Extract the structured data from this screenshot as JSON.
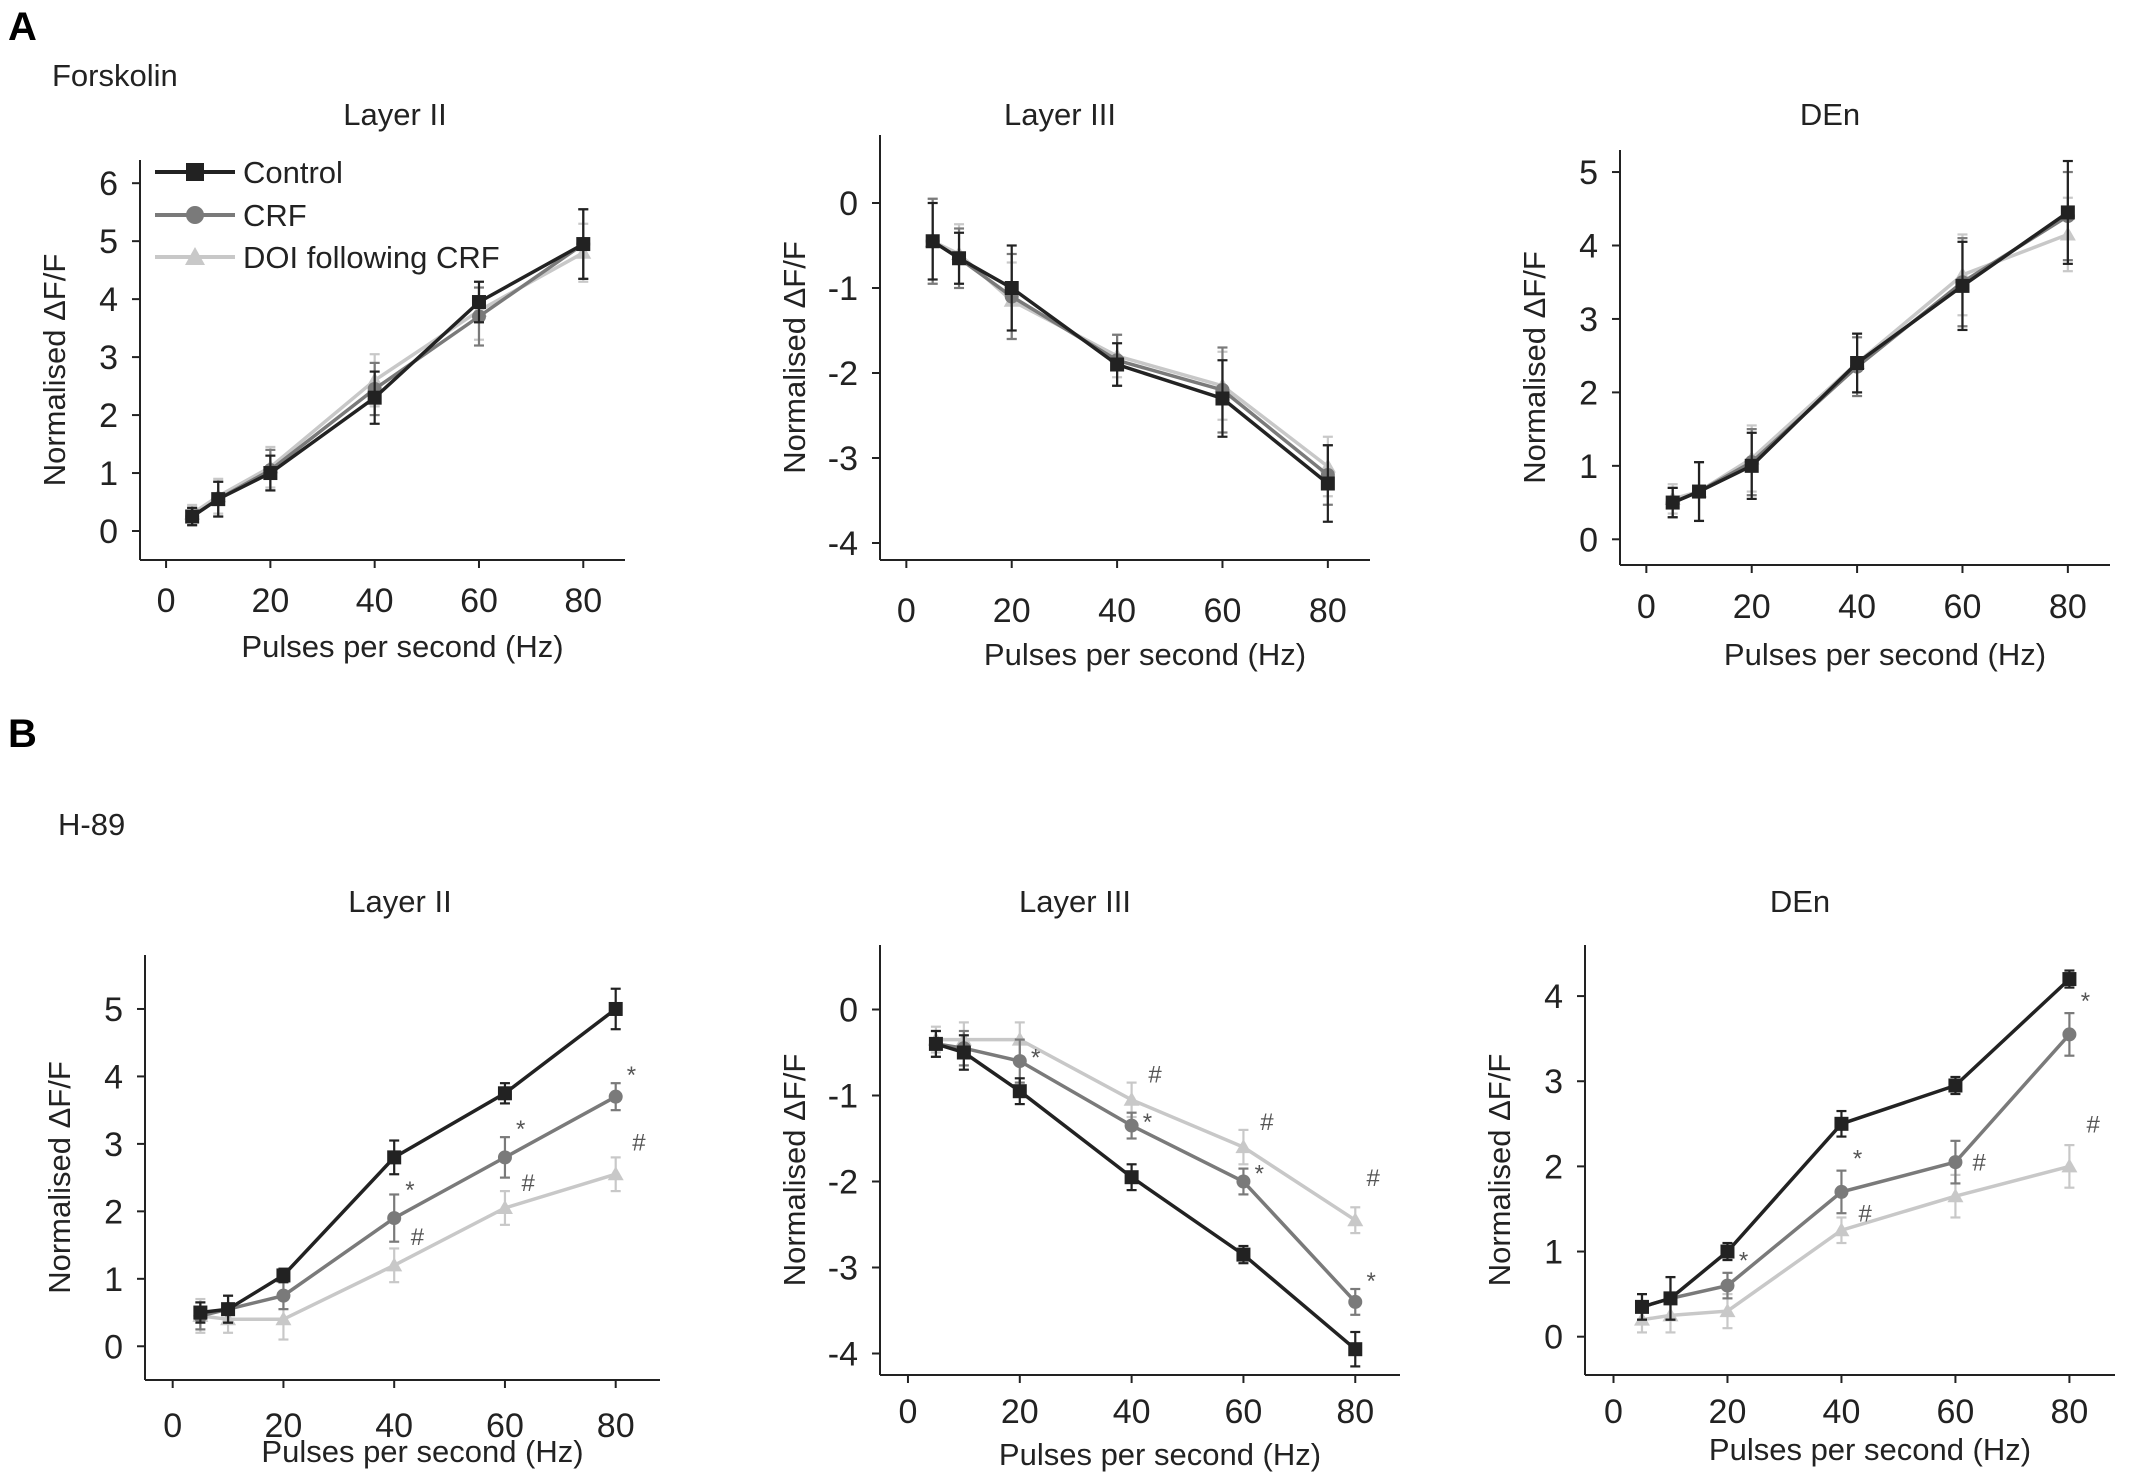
{
  "panels": [
    {
      "letter": "A",
      "condition": "Forskolin"
    },
    {
      "letter": "B",
      "condition": "H-89"
    }
  ],
  "legend": [
    {
      "name": "Control",
      "color": "#222222",
      "marker": "square"
    },
    {
      "name": "CRF",
      "color": "#7a7a7a",
      "marker": "circle"
    },
    {
      "name": "DOI following CRF",
      "color": "#c8c8c8",
      "marker": "triangle"
    }
  ],
  "chart_data": [
    {
      "type": "line",
      "panel": "A",
      "condition": "Forskolin",
      "title": "Layer II",
      "xlabel": "Pulses per second (Hz)",
      "ylabel": "Normalised ΔF/F",
      "xlim": [
        -5,
        88
      ],
      "ylim": [
        -0.5,
        6.4
      ],
      "xticks": [
        0,
        20,
        40,
        60,
        80
      ],
      "yticks": [
        0,
        1,
        2,
        3,
        4,
        5,
        6
      ],
      "x": [
        5,
        10,
        20,
        40,
        60,
        80
      ],
      "series": [
        {
          "name": "Control",
          "values": [
            0.25,
            0.55,
            1.0,
            2.3,
            3.95,
            4.95
          ],
          "errors": [
            0.15,
            0.3,
            0.3,
            0.45,
            0.35,
            0.6
          ]
        },
        {
          "name": "CRF",
          "values": [
            0.25,
            0.55,
            1.05,
            2.45,
            3.7,
            4.95
          ],
          "errors": [
            0.15,
            0.3,
            0.35,
            0.45,
            0.5,
            0.6
          ]
        },
        {
          "name": "DOI following CRF",
          "values": [
            0.3,
            0.6,
            1.1,
            2.6,
            3.8,
            4.8
          ],
          "errors": [
            0.15,
            0.3,
            0.35,
            0.45,
            0.5,
            0.5
          ]
        }
      ],
      "annotations": []
    },
    {
      "type": "line",
      "panel": "A",
      "condition": "Forskolin",
      "title": "Layer III",
      "xlabel": "Pulses per second (Hz)",
      "ylabel": "Normalised ΔF/F",
      "xlim": [
        -5,
        88
      ],
      "ylim": [
        -4.2,
        0.8
      ],
      "xticks": [
        0,
        20,
        40,
        60,
        80
      ],
      "yticks": [
        0,
        -1,
        -2,
        -3,
        -4
      ],
      "x": [
        5,
        10,
        20,
        40,
        60,
        80
      ],
      "series": [
        {
          "name": "Control",
          "values": [
            -0.45,
            -0.65,
            -1.0,
            -1.9,
            -2.3,
            -3.3
          ],
          "errors": [
            0.45,
            0.3,
            0.5,
            0.25,
            0.45,
            0.45
          ]
        },
        {
          "name": "CRF",
          "values": [
            -0.45,
            -0.65,
            -1.1,
            -1.85,
            -2.2,
            -3.2
          ],
          "errors": [
            0.5,
            0.35,
            0.5,
            0.3,
            0.5,
            0.35
          ]
        },
        {
          "name": "DOI following CRF",
          "values": [
            -0.45,
            -0.6,
            -1.15,
            -1.8,
            -2.15,
            -3.1
          ],
          "errors": [
            0.5,
            0.35,
            0.45,
            0.25,
            0.4,
            0.35
          ]
        }
      ],
      "annotations": []
    },
    {
      "type": "line",
      "panel": "A",
      "condition": "Forskolin",
      "title": "DEn",
      "xlabel": "Pulses per second (Hz)",
      "ylabel": "Normalised ΔF/F",
      "xlim": [
        -5,
        88
      ],
      "ylim": [
        -0.35,
        5.3
      ],
      "xticks": [
        0,
        20,
        40,
        60,
        80
      ],
      "yticks": [
        0,
        1,
        2,
        3,
        4,
        5
      ],
      "x": [
        5,
        10,
        20,
        40,
        60,
        80
      ],
      "series": [
        {
          "name": "Control",
          "values": [
            0.5,
            0.65,
            1.0,
            2.4,
            3.45,
            4.45
          ],
          "errors": [
            0.2,
            0.4,
            0.45,
            0.4,
            0.6,
            0.7
          ]
        },
        {
          "name": "CRF",
          "values": [
            0.5,
            0.65,
            1.05,
            2.35,
            3.5,
            4.4
          ],
          "errors": [
            0.2,
            0.4,
            0.45,
            0.4,
            0.6,
            0.6
          ]
        },
        {
          "name": "DOI following CRF",
          "values": [
            0.55,
            0.65,
            1.1,
            2.4,
            3.6,
            4.15
          ],
          "errors": [
            0.2,
            0.4,
            0.45,
            0.4,
            0.55,
            0.5
          ]
        }
      ],
      "annotations": []
    },
    {
      "type": "line",
      "panel": "B",
      "condition": "H-89",
      "title": "Layer II",
      "xlabel": "Pulses per second (Hz)",
      "ylabel": "Normalised ΔF/F",
      "xlim": [
        -5,
        88
      ],
      "ylim": [
        -0.5,
        5.8
      ],
      "xticks": [
        0,
        20,
        40,
        60,
        80
      ],
      "yticks": [
        0,
        1,
        2,
        3,
        4,
        5
      ],
      "x": [
        5,
        10,
        20,
        40,
        60,
        80
      ],
      "series": [
        {
          "name": "Control",
          "values": [
            0.5,
            0.55,
            1.05,
            2.8,
            3.75,
            5.0
          ],
          "errors": [
            0.15,
            0.2,
            0.1,
            0.25,
            0.15,
            0.3
          ]
        },
        {
          "name": "CRF",
          "values": [
            0.45,
            0.55,
            0.75,
            1.9,
            2.8,
            3.7
          ],
          "errors": [
            0.2,
            0.2,
            0.2,
            0.35,
            0.3,
            0.2
          ]
        },
        {
          "name": "DOI following CRF",
          "values": [
            0.45,
            0.4,
            0.4,
            1.2,
            2.05,
            2.55
          ],
          "errors": [
            0.25,
            0.2,
            0.3,
            0.25,
            0.25,
            0.25
          ]
        }
      ],
      "annotations": [
        {
          "text": "*",
          "x": 42,
          "y": 2.2
        },
        {
          "text": "#",
          "x": 43,
          "y": 1.5
        },
        {
          "text": "*",
          "x": 62,
          "y": 3.1
        },
        {
          "text": "#",
          "x": 63,
          "y": 2.3
        },
        {
          "text": "*",
          "x": 82,
          "y": 3.9
        },
        {
          "text": "#",
          "x": 83,
          "y": 2.9
        }
      ]
    },
    {
      "type": "line",
      "panel": "B",
      "condition": "H-89",
      "title": "Layer III",
      "xlabel": "Pulses per second (Hz)",
      "ylabel": "Normalised ΔF/F",
      "xlim": [
        -5,
        88
      ],
      "ylim": [
        -4.25,
        0.75
      ],
      "xticks": [
        0,
        20,
        40,
        60,
        80
      ],
      "yticks": [
        0,
        -1,
        -2,
        -3,
        -4
      ],
      "x": [
        5,
        10,
        20,
        40,
        60,
        80
      ],
      "series": [
        {
          "name": "Control",
          "values": [
            -0.4,
            -0.5,
            -0.95,
            -1.95,
            -2.85,
            -3.95
          ],
          "errors": [
            0.15,
            0.2,
            0.15,
            0.15,
            0.1,
            0.2
          ]
        },
        {
          "name": "CRF",
          "values": [
            -0.4,
            -0.45,
            -0.6,
            -1.35,
            -2.0,
            -3.4
          ],
          "errors": [
            0.15,
            0.2,
            0.25,
            0.15,
            0.15,
            0.15
          ]
        },
        {
          "name": "DOI following CRF",
          "values": [
            -0.35,
            -0.35,
            -0.35,
            -1.05,
            -1.6,
            -2.45
          ],
          "errors": [
            0.15,
            0.2,
            0.2,
            0.2,
            0.2,
            0.15
          ]
        }
      ],
      "annotations": [
        {
          "text": "*",
          "x": 22,
          "y": -0.65
        },
        {
          "text": "#",
          "x": 43,
          "y": -0.85
        },
        {
          "text": "*",
          "x": 42,
          "y": -1.4
        },
        {
          "text": "#",
          "x": 63,
          "y": -1.4
        },
        {
          "text": "*",
          "x": 62,
          "y": -2.0
        },
        {
          "text": "#",
          "x": 82,
          "y": -2.05
        },
        {
          "text": "*",
          "x": 82,
          "y": -3.25
        }
      ]
    },
    {
      "type": "line",
      "panel": "B",
      "condition": "H-89",
      "title": "DEn",
      "xlabel": "Pulses per second (Hz)",
      "ylabel": "Normalised ΔF/F",
      "xlim": [
        -5,
        88
      ],
      "ylim": [
        -0.45,
        4.6
      ],
      "xticks": [
        0,
        20,
        40,
        60,
        80
      ],
      "yticks": [
        0,
        1,
        2,
        3,
        4
      ],
      "x": [
        5,
        10,
        20,
        40,
        60,
        80
      ],
      "series": [
        {
          "name": "Control",
          "values": [
            0.35,
            0.45,
            1.0,
            2.5,
            2.95,
            4.2
          ],
          "errors": [
            0.15,
            0.25,
            0.1,
            0.15,
            0.1,
            0.1
          ]
        },
        {
          "name": "CRF",
          "values": [
            0.35,
            0.45,
            0.6,
            1.7,
            2.05,
            3.55
          ],
          "errors": [
            0.15,
            0.25,
            0.15,
            0.25,
            0.25,
            0.25
          ]
        },
        {
          "name": "DOI following CRF",
          "values": [
            0.2,
            0.25,
            0.3,
            1.25,
            1.65,
            2.0
          ],
          "errors": [
            0.15,
            0.2,
            0.2,
            0.15,
            0.25,
            0.25
          ]
        }
      ],
      "annotations": [
        {
          "text": "*",
          "x": 22,
          "y": 0.8
        },
        {
          "text": "*",
          "x": 42,
          "y": 2.0
        },
        {
          "text": "#",
          "x": 43,
          "y": 1.35
        },
        {
          "text": "#",
          "x": 63,
          "y": 1.95
        },
        {
          "text": "*",
          "x": 82,
          "y": 3.85
        },
        {
          "text": "#",
          "x": 83,
          "y": 2.4
        }
      ]
    }
  ]
}
